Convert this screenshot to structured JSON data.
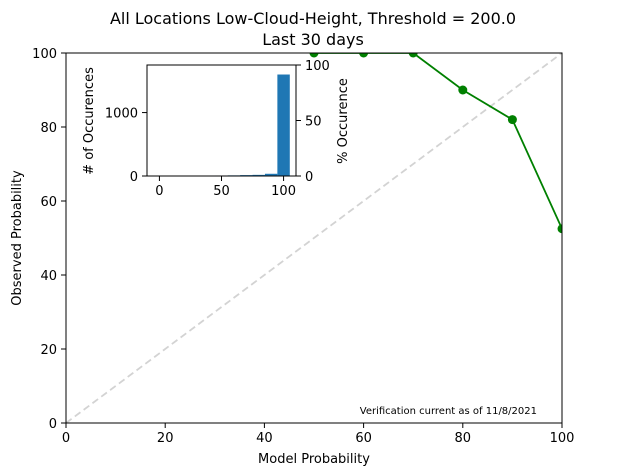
{
  "chart_data": [
    {
      "type": "line",
      "title": "All Locations Low-Cloud-Height, Threshold = 200.0",
      "subtitle": "Last 30 days",
      "xlabel": "Model Probability",
      "ylabel": "Observed Probability",
      "xlim": [
        0,
        100
      ],
      "ylim": [
        0,
        100
      ],
      "xticks": [
        0,
        20,
        40,
        60,
        80,
        100
      ],
      "yticks": [
        0,
        20,
        40,
        60,
        80,
        100
      ],
      "grid": false,
      "reference_line": {
        "from": [
          0,
          0
        ],
        "to": [
          100,
          100
        ],
        "color": "#d3d3d3",
        "style": "dashed"
      },
      "series": [
        {
          "color": "#008000",
          "x": [
            50,
            60,
            70,
            80,
            90,
            100
          ],
          "y": [
            100,
            100,
            100,
            90,
            82,
            52.5
          ]
        }
      ],
      "annotation": "Verification current as of 11/8/2021"
    },
    {
      "type": "bar",
      "inset": true,
      "ylabel": "# of Occurences",
      "y2label": "% Occurence",
      "xticks": [
        0,
        50,
        100
      ],
      "yticks": [
        0,
        1000
      ],
      "y2ticks": [
        0,
        50,
        100
      ],
      "xlim": [
        -10,
        110
      ],
      "ylim": [
        0,
        1750
      ],
      "bar_width": 10,
      "color": "#1f77b4",
      "bins": [
        0,
        10,
        20,
        30,
        40,
        50,
        60,
        70,
        80,
        90,
        100
      ],
      "values": [
        2,
        3,
        3,
        4,
        6,
        8,
        10,
        14,
        18,
        35,
        1600
      ]
    }
  ]
}
